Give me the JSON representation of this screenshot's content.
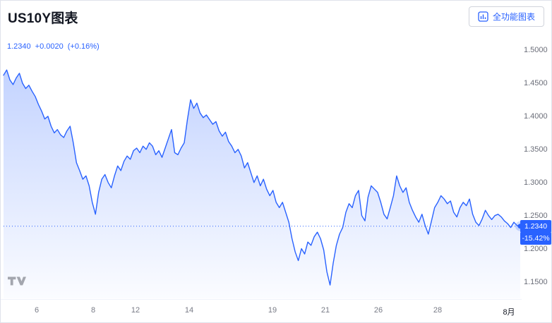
{
  "header": {
    "title": "US10Y图表",
    "full_chart_button": "全功能图表"
  },
  "quote": {
    "price": "1.2340",
    "change": "+0.0020",
    "change_percent": "(+0.16%)"
  },
  "price_scale": {
    "current_badge": "1.2340",
    "percent_badge": "-15.42%"
  },
  "colors": {
    "accent": "#2962ff",
    "axis_text": "#787b86",
    "title_text": "#131722"
  },
  "chart_data": {
    "type": "area",
    "title": "US10Y",
    "line_color": "#2962ff",
    "fill_top": "rgba(41,98,255,0.28)",
    "fill_bottom": "rgba(41,98,255,0.02)",
    "ylim": [
      1.125,
      1.515
    ],
    "current_price": 1.234,
    "legend": "US10Y 1.2340 +0.0020 (+0.16%)",
    "grid": false,
    "y_ticks": [
      {
        "label": "1.5000",
        "value": 1.5
      },
      {
        "label": "1.4500",
        "value": 1.45
      },
      {
        "label": "1.4000",
        "value": 1.4
      },
      {
        "label": "1.3500",
        "value": 1.35
      },
      {
        "label": "1.3000",
        "value": 1.3
      },
      {
        "label": "1.2500",
        "value": 1.25
      },
      {
        "label": "1.2000",
        "value": 1.2
      },
      {
        "label": "1.1500",
        "value": 1.15
      }
    ],
    "x_ticks": [
      {
        "label": "6",
        "pos": 0.064
      },
      {
        "label": "8",
        "pos": 0.174
      },
      {
        "label": "12",
        "pos": 0.256
      },
      {
        "label": "14",
        "pos": 0.359
      },
      {
        "label": "19",
        "pos": 0.52
      },
      {
        "label": "21",
        "pos": 0.623
      },
      {
        "label": "26",
        "pos": 0.726
      },
      {
        "label": "28",
        "pos": 0.84
      },
      {
        "label": "8月",
        "pos": 0.978
      }
    ],
    "values": [
      1.462,
      1.47,
      1.455,
      1.448,
      1.458,
      1.465,
      1.45,
      1.442,
      1.447,
      1.438,
      1.43,
      1.418,
      1.408,
      1.396,
      1.4,
      1.385,
      1.375,
      1.38,
      1.372,
      1.368,
      1.378,
      1.385,
      1.36,
      1.33,
      1.318,
      1.305,
      1.31,
      1.295,
      1.27,
      1.252,
      1.285,
      1.305,
      1.312,
      1.3,
      1.292,
      1.31,
      1.325,
      1.318,
      1.332,
      1.34,
      1.335,
      1.348,
      1.352,
      1.345,
      1.355,
      1.35,
      1.36,
      1.355,
      1.342,
      1.348,
      1.338,
      1.352,
      1.366,
      1.38,
      1.345,
      1.342,
      1.352,
      1.36,
      1.395,
      1.425,
      1.412,
      1.42,
      1.405,
      1.398,
      1.402,
      1.395,
      1.388,
      1.392,
      1.378,
      1.37,
      1.376,
      1.362,
      1.355,
      1.345,
      1.35,
      1.34,
      1.322,
      1.33,
      1.315,
      1.3,
      1.31,
      1.295,
      1.305,
      1.29,
      1.28,
      1.288,
      1.27,
      1.262,
      1.27,
      1.255,
      1.24,
      1.215,
      1.195,
      1.182,
      1.2,
      1.192,
      1.21,
      1.205,
      1.218,
      1.225,
      1.215,
      1.198,
      1.165,
      1.145,
      1.178,
      1.205,
      1.222,
      1.232,
      1.255,
      1.268,
      1.262,
      1.28,
      1.288,
      1.25,
      1.242,
      1.278,
      1.295,
      1.29,
      1.285,
      1.27,
      1.252,
      1.245,
      1.262,
      1.28,
      1.31,
      1.295,
      1.285,
      1.292,
      1.27,
      1.258,
      1.248,
      1.24,
      1.252,
      1.235,
      1.222,
      1.242,
      1.262,
      1.27,
      1.28,
      1.275,
      1.268,
      1.272,
      1.255,
      1.248,
      1.262,
      1.27,
      1.265,
      1.275,
      1.252,
      1.24,
      1.235,
      1.245,
      1.258,
      1.25,
      1.244,
      1.25,
      1.252,
      1.248,
      1.242,
      1.238,
      1.232,
      1.24,
      1.235,
      1.234
    ]
  },
  "logo": {
    "name": "TradingView"
  }
}
